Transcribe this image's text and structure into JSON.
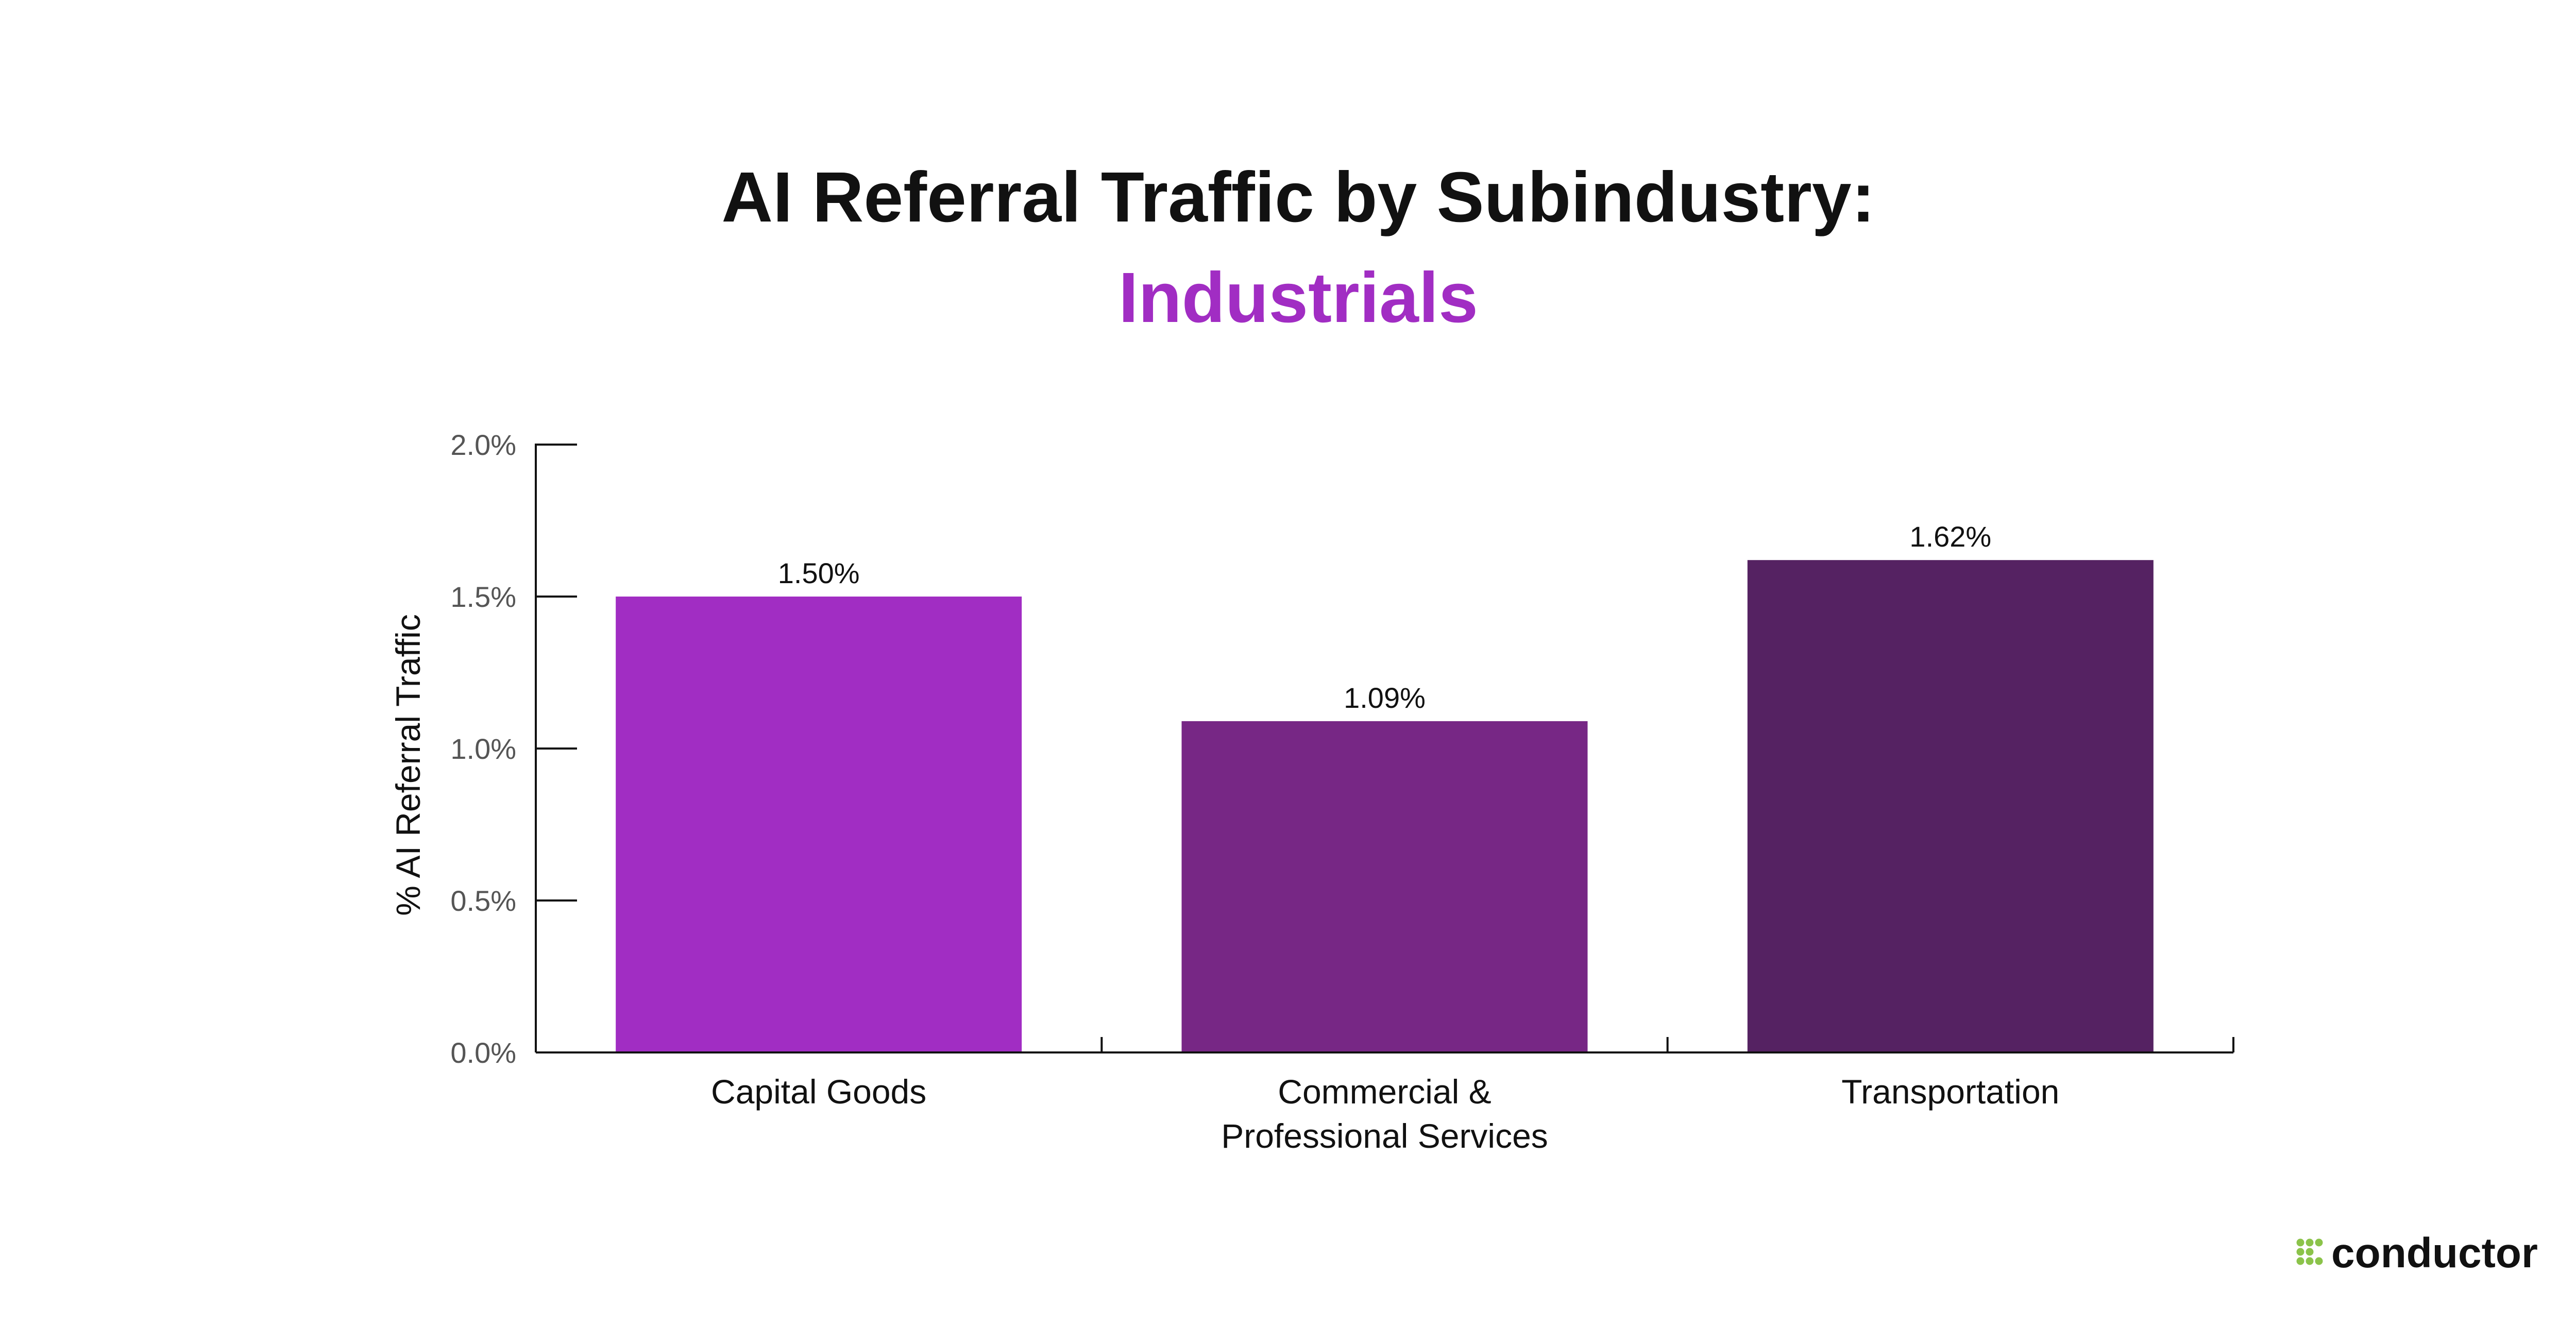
{
  "chart_data": {
    "type": "bar",
    "title": "AI Referral Traffic by Subindustry:",
    "subtitle": "Industrials",
    "ylabel": "% AI Referral Traffic",
    "xlabel": "",
    "ylim": [
      0,
      2.0
    ],
    "yticks": [
      0.0,
      0.5,
      1.0,
      1.5,
      2.0
    ],
    "ytick_labels": [
      "0.0%",
      "0.5%",
      "1.0%",
      "1.5%",
      "2.0%"
    ],
    "categories": [
      [
        "Capital Goods"
      ],
      [
        "Commercial &",
        "Professional Services"
      ],
      [
        "Transportation"
      ]
    ],
    "values": [
      1.5,
      1.09,
      1.62
    ],
    "value_labels": [
      "1.50%",
      "1.09%",
      "1.62%"
    ],
    "colors": [
      "#A12DC3",
      "#772785",
      "#552262"
    ],
    "subtitle_color": "#A12DC3",
    "grid": false,
    "legend": "none"
  },
  "brand": {
    "name": "conductor",
    "dot_color": "#8BC34A"
  }
}
